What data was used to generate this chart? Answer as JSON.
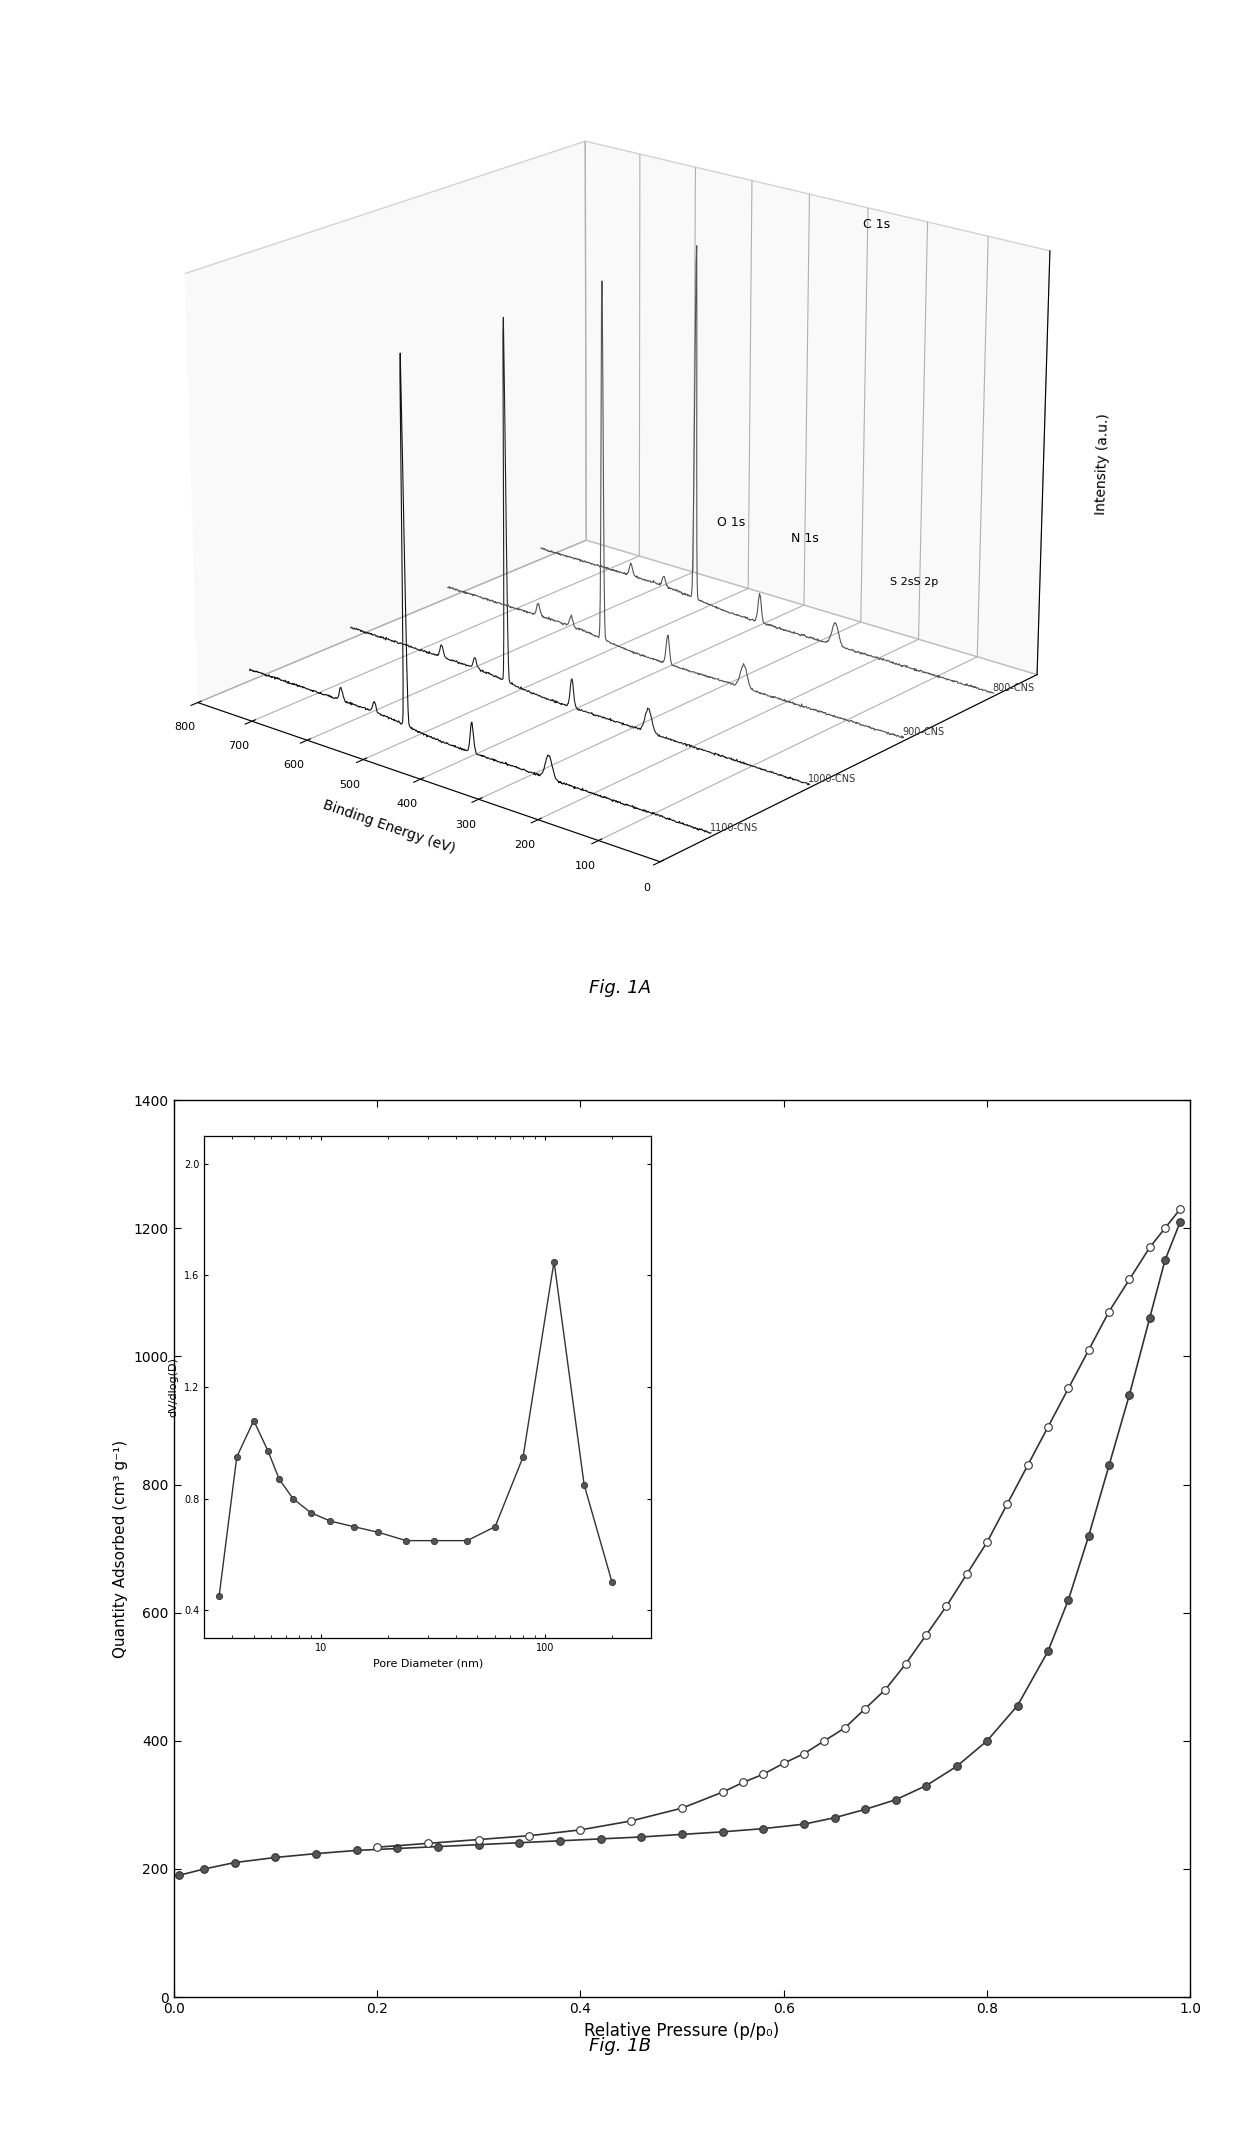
{
  "fig1a": {
    "xlabel": "Binding Energy (eV)",
    "ylabel_3d": "Intensity (a.u.)",
    "xticks": [
      800,
      700,
      600,
      500,
      400,
      300,
      200,
      100,
      0
    ],
    "curves": [
      {
        "label": "800-CNS",
        "color": "#555555"
      },
      {
        "label": "900-CNS",
        "color": "#555555"
      },
      {
        "label": "1000-CNS",
        "color": "#222222"
      },
      {
        "label": "1100-CNS",
        "color": "#111111"
      }
    ],
    "peak_labels": [
      "C 1s",
      "O 1s",
      "N 1s",
      "S 2sS 2p"
    ],
    "peak_energies": [
      284,
      532,
      400,
      200
    ],
    "elev": 20,
    "azim": -50
  },
  "fig1b": {
    "xlabel": "Relative Pressure (p/p₀)",
    "ylabel": "Quantity Adsorbed (cm³ g⁻¹)",
    "xlim": [
      0.0,
      1.0
    ],
    "ylim": [
      0,
      1400
    ],
    "yticks": [
      0,
      200,
      400,
      600,
      800,
      1000,
      1200,
      1400
    ],
    "xticks": [
      0.0,
      0.2,
      0.4,
      0.6,
      0.8,
      1.0
    ],
    "adsorption_x": [
      0.005,
      0.03,
      0.06,
      0.1,
      0.14,
      0.18,
      0.22,
      0.26,
      0.3,
      0.34,
      0.38,
      0.42,
      0.46,
      0.5,
      0.54,
      0.58,
      0.62,
      0.65,
      0.68,
      0.71,
      0.74,
      0.77,
      0.8,
      0.83,
      0.86,
      0.88,
      0.9,
      0.92,
      0.94,
      0.96,
      0.975,
      0.99
    ],
    "adsorption_y": [
      190,
      200,
      210,
      218,
      224,
      229,
      232,
      235,
      238,
      241,
      244,
      247,
      250,
      254,
      258,
      263,
      270,
      280,
      293,
      308,
      330,
      360,
      400,
      455,
      540,
      620,
      720,
      830,
      940,
      1060,
      1150,
      1210
    ],
    "desorption_x": [
      0.99,
      0.975,
      0.96,
      0.94,
      0.92,
      0.9,
      0.88,
      0.86,
      0.84,
      0.82,
      0.8,
      0.78,
      0.76,
      0.74,
      0.72,
      0.7,
      0.68,
      0.66,
      0.64,
      0.62,
      0.6,
      0.58,
      0.56,
      0.54,
      0.5,
      0.45,
      0.4,
      0.35,
      0.3,
      0.25,
      0.2
    ],
    "desorption_y": [
      1230,
      1200,
      1170,
      1120,
      1070,
      1010,
      950,
      890,
      830,
      770,
      710,
      660,
      610,
      565,
      520,
      480,
      450,
      420,
      400,
      380,
      365,
      348,
      335,
      320,
      295,
      275,
      261,
      252,
      246,
      240,
      234
    ],
    "inset": {
      "xlabel": "Pore Diameter (nm)",
      "ylabel": "dV/dlog(D)",
      "xlim": [
        3,
        300
      ],
      "ylim": [
        0.3,
        2.1
      ],
      "yticks": [
        0.4,
        0.8,
        1.2,
        1.6,
        2.0
      ],
      "pore_x": [
        3.5,
        4.2,
        5.0,
        5.8,
        6.5,
        7.5,
        9,
        11,
        14,
        18,
        24,
        32,
        45,
        60,
        80,
        110,
        150,
        200
      ],
      "pore_y": [
        0.45,
        0.95,
        1.08,
        0.97,
        0.87,
        0.8,
        0.75,
        0.72,
        0.7,
        0.68,
        0.65,
        0.65,
        0.65,
        0.7,
        0.95,
        1.65,
        0.85,
        0.5
      ]
    }
  },
  "figA_caption": "Fig. 1A",
  "figB_caption": "Fig. 1B"
}
